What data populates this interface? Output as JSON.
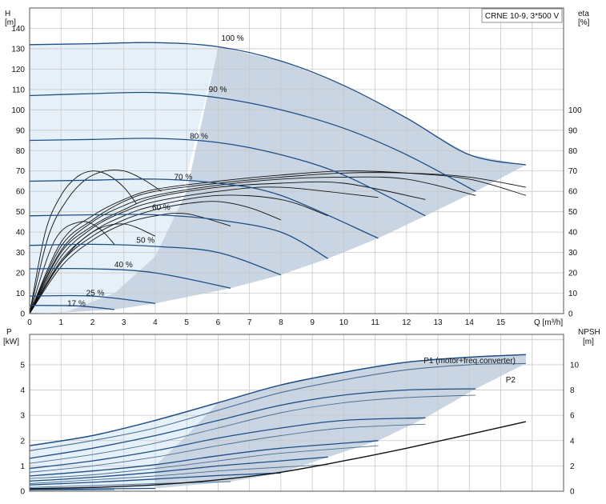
{
  "chart_data": [
    {
      "type": "line",
      "panel": "head",
      "model_label": "CRNE 10-9, 3*500 V",
      "ylabel_left": "H",
      "yunit_left": "[m]",
      "ylabel_right": "eta",
      "yunit_right": "[%]",
      "xlabel": "Q [m³/h]",
      "xlim": [
        0,
        17
      ],
      "ylim": [
        0,
        150
      ],
      "x_ticks": [
        "0",
        "1",
        "2",
        "3",
        "4",
        "5",
        "6",
        "7",
        "8",
        "9",
        "10",
        "11",
        "12",
        "13",
        "14",
        "15"
      ],
      "y_ticks": [
        "0",
        "10",
        "20",
        "30",
        "40",
        "50",
        "60",
        "70",
        "80",
        "90",
        "100",
        "110",
        "120",
        "130",
        "140"
      ],
      "y2_ticks": [
        "0",
        "10",
        "20",
        "30",
        "40",
        "50",
        "60",
        "70",
        "80",
        "90",
        "100"
      ],
      "grid": true,
      "operating_area_color": "#c9d5e2",
      "light_area_color": "#e6f0f9",
      "curve_color": "#1f4e85",
      "eta_color": "#111111",
      "speed_curves": [
        {
          "label": "100 %",
          "x": [
            0,
            2,
            4,
            6,
            8,
            10,
            12,
            14,
            15.8
          ],
          "y": [
            132,
            132.5,
            133,
            131,
            124,
            112,
            96,
            78,
            73
          ]
        },
        {
          "label": "90 %",
          "x": [
            0,
            2,
            4,
            6,
            8,
            10,
            12,
            14.2
          ],
          "y": [
            107,
            108,
            108.5,
            106,
            100,
            91,
            78,
            60
          ]
        },
        {
          "label": "80 %",
          "x": [
            0,
            2,
            4,
            6,
            8,
            10,
            12.6
          ],
          "y": [
            85,
            85.5,
            86,
            84,
            78,
            68,
            48
          ]
        },
        {
          "label": "70 %",
          "x": [
            0,
            2,
            4,
            6,
            8,
            11.1
          ],
          "y": [
            65,
            65.5,
            66,
            64,
            58,
            37
          ]
        },
        {
          "label": "60 %",
          "x": [
            0,
            2,
            4,
            6,
            8,
            9.5
          ],
          "y": [
            48,
            48.5,
            48.5,
            46,
            40,
            27
          ]
        },
        {
          "label": "50 %",
          "x": [
            0,
            2,
            4,
            6,
            8
          ],
          "y": [
            33.5,
            34,
            33,
            30,
            19
          ]
        },
        {
          "label": "40 %",
          "x": [
            0,
            2,
            4,
            6.4
          ],
          "y": [
            22,
            22,
            20,
            12.5
          ]
        },
        {
          "label": "25 %",
          "x": [
            0,
            2,
            4
          ],
          "y": [
            8.6,
            8.6,
            5
          ]
        },
        {
          "label": "17 %",
          "x": [
            0,
            1.5,
            2.7
          ],
          "y": [
            4,
            3.8,
            2
          ]
        }
      ],
      "eta_curves": [
        {
          "x": [
            0,
            1,
            2,
            3,
            4,
            6,
            8,
            10,
            12,
            14,
            15.8
          ],
          "y": [
            0,
            35,
            48,
            56,
            61,
            65,
            68,
            70,
            69,
            66,
            58
          ]
        },
        {
          "x": [
            0,
            1,
            2,
            3,
            4,
            6,
            8,
            10,
            12,
            14,
            15.8
          ],
          "y": [
            0,
            33,
            46,
            55,
            60,
            64,
            67,
            69,
            69,
            67,
            62
          ]
        },
        {
          "x": [
            0,
            1,
            2,
            3,
            4,
            6,
            8,
            10,
            12,
            14.2
          ],
          "y": [
            0,
            31,
            45,
            53,
            58,
            63,
            66,
            67,
            66,
            58
          ]
        },
        {
          "x": [
            0,
            1,
            2,
            3,
            4,
            6,
            8,
            10,
            12.6
          ],
          "y": [
            0,
            30,
            43,
            51,
            57,
            62,
            64,
            64,
            56
          ]
        },
        {
          "x": [
            0,
            1,
            2,
            3,
            4,
            6,
            8,
            11.1
          ],
          "y": [
            0,
            28,
            42,
            50,
            55,
            60,
            62,
            57
          ]
        },
        {
          "x": [
            0,
            1,
            2,
            3,
            4,
            6,
            8,
            9.5
          ],
          "y": [
            0,
            26,
            40,
            48,
            53,
            58,
            56,
            48
          ]
        },
        {
          "x": [
            0,
            1,
            2,
            3,
            4,
            5,
            6,
            7,
            8
          ],
          "y": [
            0,
            25,
            38,
            46,
            51,
            54,
            55,
            52,
            46
          ]
        },
        {
          "x": [
            0,
            1,
            2,
            3,
            4,
            5,
            6.4
          ],
          "y": [
            0,
            23,
            36,
            44,
            48,
            49,
            43
          ]
        },
        {
          "x": [
            0,
            1,
            2,
            3,
            4
          ],
          "y": [
            0,
            25,
            40,
            44,
            38
          ]
        },
        {
          "x": [
            0,
            0.8,
            1.6,
            2.2,
            2.7
          ],
          "y": [
            0,
            36,
            45,
            42,
            34
          ]
        },
        {
          "x": [
            0,
            0.5,
            1,
            1.5,
            2,
            2.5,
            3,
            3.4
          ],
          "y": [
            0,
            40,
            58,
            67,
            70,
            68,
            62,
            54
          ]
        },
        {
          "x": [
            0,
            0.6,
            1.2,
            1.8,
            2.4,
            3,
            3.6,
            4.2
          ],
          "y": [
            0,
            38,
            56,
            66,
            70,
            70,
            66,
            60
          ]
        }
      ]
    },
    {
      "type": "line",
      "panel": "power",
      "ylabel_left": "P",
      "yunit_left": "[kW]",
      "ylabel_right": "NPSH",
      "yunit_right": "[m]",
      "xlim": [
        0,
        17
      ],
      "ylim": [
        0,
        6.2
      ],
      "y2lim": [
        0,
        12.4
      ],
      "y_ticks": [
        "0",
        "1",
        "2",
        "3",
        "4",
        "5"
      ],
      "y2_ticks": [
        "0",
        "2",
        "4",
        "6",
        "8",
        "10"
      ],
      "grid": true,
      "series": [
        {
          "name": "P1 (motor+freq.converter)",
          "x": [
            0,
            2,
            4,
            6,
            8,
            10,
            12,
            14,
            15.8
          ],
          "y": [
            1.8,
            2.2,
            2.8,
            3.5,
            4.2,
            4.7,
            5.1,
            5.3,
            5.4
          ]
        },
        {
          "name": "P2",
          "x": [
            0,
            2,
            4,
            6,
            8,
            10,
            12,
            14,
            15.8
          ],
          "y": [
            1.6,
            2.0,
            2.5,
            3.2,
            3.9,
            4.4,
            4.8,
            5.0,
            5.05
          ]
        }
      ],
      "speed_curves": [
        {
          "x": [
            0,
            2,
            4,
            6,
            8,
            10,
            12,
            14.2
          ],
          "y": [
            1.3,
            1.7,
            2.2,
            2.8,
            3.4,
            3.8,
            4.0,
            4.05
          ]
        },
        {
          "x": [
            0,
            2,
            4,
            6,
            8,
            10,
            12,
            14.2
          ],
          "y": [
            1.1,
            1.45,
            1.9,
            2.5,
            3.1,
            3.5,
            3.7,
            3.8
          ]
        },
        {
          "x": [
            0,
            2,
            4,
            6,
            8,
            10,
            12.6
          ],
          "y": [
            0.9,
            1.2,
            1.6,
            2.1,
            2.5,
            2.8,
            2.9
          ]
        },
        {
          "x": [
            0,
            2,
            4,
            6,
            8,
            10,
            12.6
          ],
          "y": [
            0.75,
            1.0,
            1.35,
            1.8,
            2.2,
            2.5,
            2.65
          ]
        },
        {
          "x": [
            0,
            2,
            4,
            6,
            8,
            11.1
          ],
          "y": [
            0.6,
            0.8,
            1.05,
            1.4,
            1.7,
            2.0
          ]
        },
        {
          "x": [
            0,
            2,
            4,
            6,
            8,
            11.1
          ],
          "y": [
            0.5,
            0.65,
            0.9,
            1.2,
            1.5,
            1.8
          ]
        },
        {
          "x": [
            0,
            2,
            4,
            6,
            8,
            9.5
          ],
          "y": [
            0.4,
            0.55,
            0.75,
            1.0,
            1.2,
            1.35
          ]
        },
        {
          "x": [
            0,
            2,
            4,
            6,
            8,
            9.5
          ],
          "y": [
            0.3,
            0.45,
            0.6,
            0.8,
            0.95,
            1.05
          ]
        },
        {
          "x": [
            0,
            2,
            4,
            6,
            8
          ],
          "y": [
            0.25,
            0.35,
            0.48,
            0.62,
            0.72
          ]
        },
        {
          "x": [
            0,
            2,
            4,
            6.4
          ],
          "y": [
            0.15,
            0.22,
            0.3,
            0.38
          ]
        },
        {
          "x": [
            0,
            2,
            4
          ],
          "y": [
            0.07,
            0.09,
            0.11
          ]
        },
        {
          "x": [
            0,
            1.5,
            2.7
          ],
          "y": [
            0.04,
            0.05,
            0.06
          ]
        }
      ],
      "npsh_curve": {
        "x": [
          0,
          2,
          4,
          6,
          8,
          10,
          12,
          14,
          15.8
        ],
        "y": [
          0.2,
          0.3,
          0.5,
          0.9,
          1.5,
          2.4,
          3.4,
          4.5,
          5.5
        ]
      }
    }
  ]
}
